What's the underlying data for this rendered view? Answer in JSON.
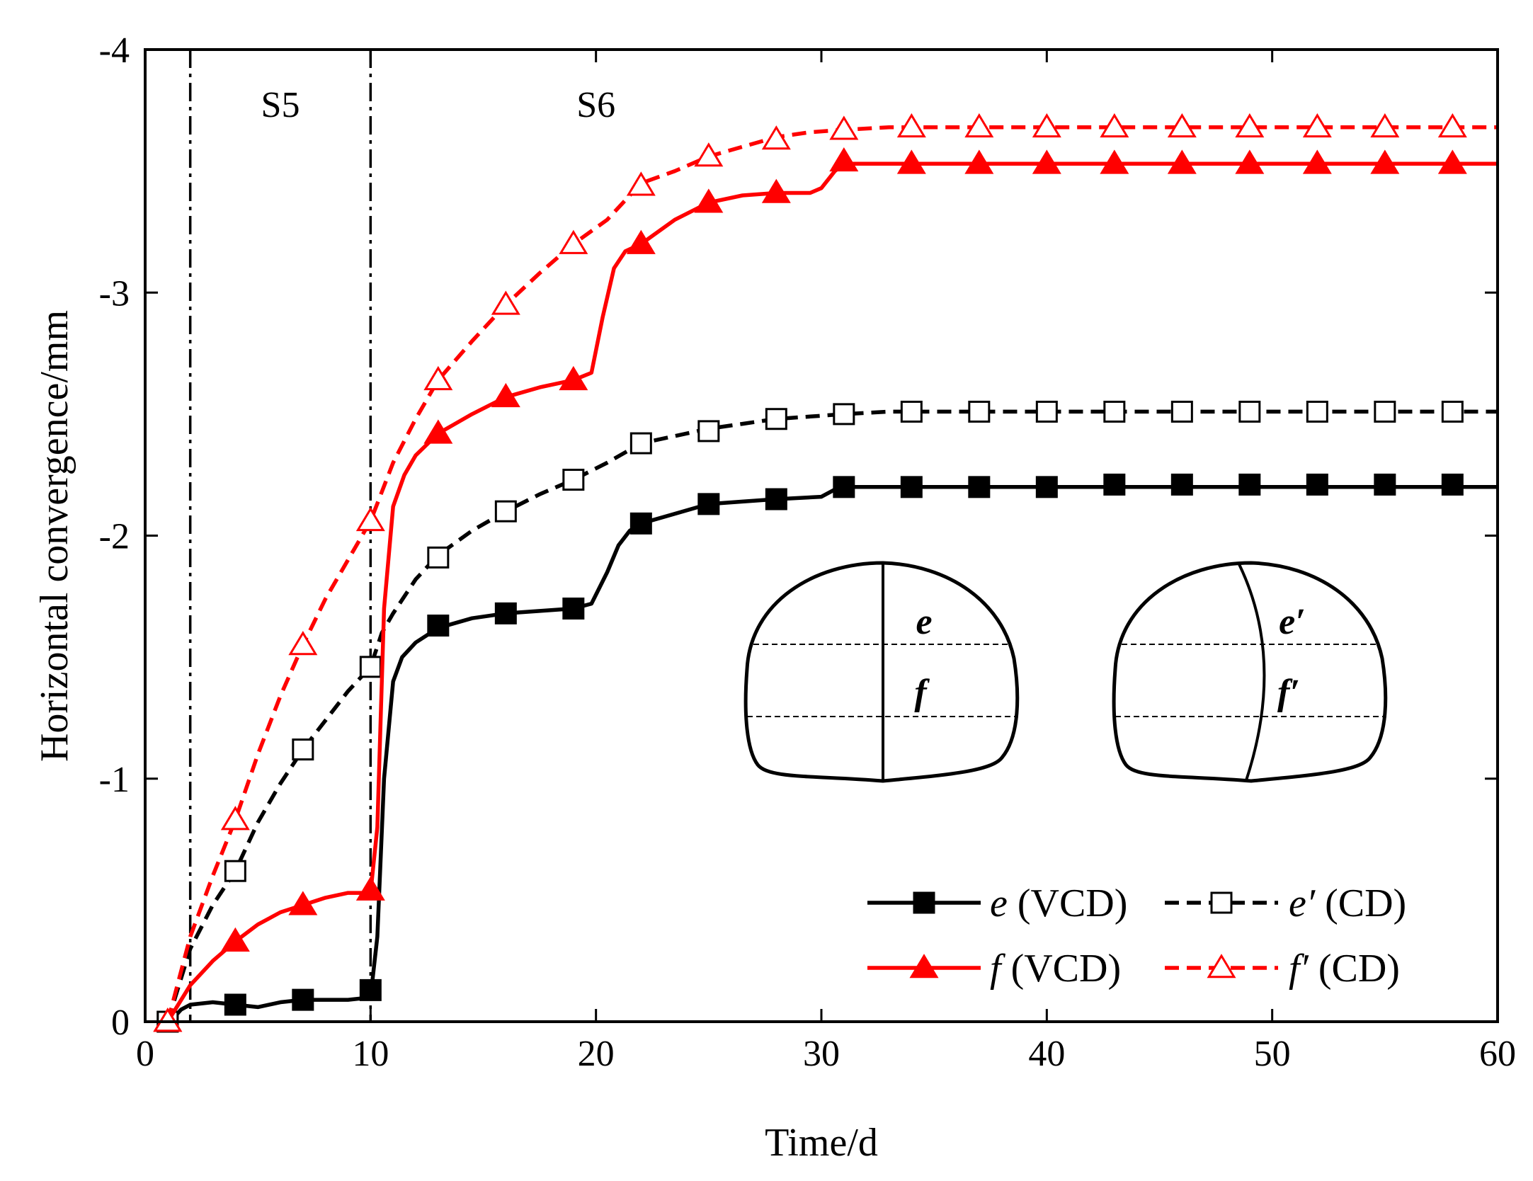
{
  "chart_data": {
    "type": "line",
    "xlabel": "Time/d",
    "ylabel": "Horizontal convergence/mm",
    "xlim": [
      0,
      60
    ],
    "ylim": [
      0,
      -4
    ],
    "y_axis_inverted": true,
    "grid": false,
    "x_ticks": [
      "0",
      "10",
      "20",
      "30",
      "40",
      "50",
      "60"
    ],
    "y_ticks": [
      "0",
      "-1",
      "-2",
      "-3",
      "-4"
    ],
    "stage_lines_x": [
      2,
      10
    ],
    "stage_labels": [
      {
        "text": "S5",
        "x": 6
      },
      {
        "text": "S6",
        "x": 20
      }
    ],
    "legend_position": "bottom-right",
    "series": [
      {
        "name": "e",
        "suffix": " (VCD)",
        "color": "#000000",
        "line": "solid",
        "marker": "square-filled",
        "curve": [
          [
            1,
            0
          ],
          [
            1.3,
            -0.02
          ],
          [
            1.6,
            -0.05
          ],
          [
            2,
            -0.07
          ],
          [
            3,
            -0.08
          ],
          [
            4,
            -0.07
          ],
          [
            5,
            -0.06
          ],
          [
            6,
            -0.08
          ],
          [
            7,
            -0.09
          ],
          [
            8,
            -0.09
          ],
          [
            9,
            -0.09
          ],
          [
            10,
            -0.1
          ],
          [
            10.3,
            -0.35
          ],
          [
            10.6,
            -1.0
          ],
          [
            11,
            -1.4
          ],
          [
            11.4,
            -1.5
          ],
          [
            12,
            -1.56
          ],
          [
            13,
            -1.62
          ],
          [
            14.5,
            -1.66
          ],
          [
            16,
            -1.68
          ],
          [
            17.5,
            -1.69
          ],
          [
            19,
            -1.7
          ],
          [
            19.8,
            -1.72
          ],
          [
            20.5,
            -1.85
          ],
          [
            21,
            -1.96
          ],
          [
            21.5,
            -2.02
          ],
          [
            22,
            -2.05
          ],
          [
            23.5,
            -2.09
          ],
          [
            25,
            -2.13
          ],
          [
            26.5,
            -2.14
          ],
          [
            28,
            -2.15
          ],
          [
            30,
            -2.16
          ],
          [
            30.6,
            -2.19
          ],
          [
            31,
            -2.2
          ],
          [
            33,
            -2.2
          ],
          [
            60,
            -2.2
          ]
        ],
        "markers": [
          [
            1,
            0
          ],
          [
            4,
            -0.07
          ],
          [
            7,
            -0.09
          ],
          [
            10,
            -0.13
          ],
          [
            13,
            -1.63
          ],
          [
            16,
            -1.68
          ],
          [
            19,
            -1.7
          ],
          [
            22,
            -2.05
          ],
          [
            25,
            -2.13
          ],
          [
            28,
            -2.15
          ],
          [
            31,
            -2.2
          ],
          [
            34,
            -2.2
          ],
          [
            37,
            -2.2
          ],
          [
            40,
            -2.2
          ],
          [
            43,
            -2.21
          ],
          [
            46,
            -2.21
          ],
          [
            49,
            -2.21
          ],
          [
            52,
            -2.21
          ],
          [
            55,
            -2.21
          ],
          [
            58,
            -2.21
          ]
        ]
      },
      {
        "name": "e′",
        "suffix": " (CD)",
        "color": "#000000",
        "line": "dashed",
        "marker": "square-open",
        "curve": [
          [
            1,
            0
          ],
          [
            2,
            -0.3
          ],
          [
            3,
            -0.48
          ],
          [
            4,
            -0.62
          ],
          [
            5,
            -0.82
          ],
          [
            6,
            -0.98
          ],
          [
            7,
            -1.12
          ],
          [
            8,
            -1.24
          ],
          [
            9,
            -1.36
          ],
          [
            10,
            -1.46
          ],
          [
            10.5,
            -1.6
          ],
          [
            11,
            -1.68
          ],
          [
            12,
            -1.82
          ],
          [
            13,
            -1.92
          ],
          [
            14.5,
            -2.02
          ],
          [
            16,
            -2.1
          ],
          [
            17.5,
            -2.17
          ],
          [
            19,
            -2.23
          ],
          [
            20.5,
            -2.3
          ],
          [
            22,
            -2.38
          ],
          [
            23.5,
            -2.41
          ],
          [
            25,
            -2.44
          ],
          [
            26.5,
            -2.46
          ],
          [
            28,
            -2.48
          ],
          [
            29.5,
            -2.49
          ],
          [
            31,
            -2.5
          ],
          [
            33,
            -2.51
          ],
          [
            60,
            -2.51
          ]
        ],
        "markers": [
          [
            1,
            0
          ],
          [
            4,
            -0.62
          ],
          [
            7,
            -1.12
          ],
          [
            10,
            -1.46
          ],
          [
            13,
            -1.91
          ],
          [
            16,
            -2.1
          ],
          [
            19,
            -2.23
          ],
          [
            22,
            -2.38
          ],
          [
            25,
            -2.43
          ],
          [
            28,
            -2.48
          ],
          [
            31,
            -2.5
          ],
          [
            34,
            -2.51
          ],
          [
            37,
            -2.51
          ],
          [
            40,
            -2.51
          ],
          [
            43,
            -2.51
          ],
          [
            46,
            -2.51
          ],
          [
            49,
            -2.51
          ],
          [
            52,
            -2.51
          ],
          [
            55,
            -2.51
          ],
          [
            58,
            -2.51
          ]
        ]
      },
      {
        "name": "f",
        "suffix": " (VCD)",
        "color": "#ff0000",
        "line": "solid",
        "marker": "triangle-filled",
        "curve": [
          [
            1,
            0
          ],
          [
            2,
            -0.15
          ],
          [
            3,
            -0.25
          ],
          [
            4,
            -0.33
          ],
          [
            5,
            -0.4
          ],
          [
            6,
            -0.45
          ],
          [
            7,
            -0.48
          ],
          [
            8,
            -0.51
          ],
          [
            9,
            -0.53
          ],
          [
            10,
            -0.53
          ],
          [
            10.3,
            -0.8
          ],
          [
            10.6,
            -1.7
          ],
          [
            11,
            -2.12
          ],
          [
            11.5,
            -2.25
          ],
          [
            12,
            -2.33
          ],
          [
            13,
            -2.42
          ],
          [
            14.5,
            -2.5
          ],
          [
            16,
            -2.57
          ],
          [
            17.5,
            -2.61
          ],
          [
            19,
            -2.64
          ],
          [
            19.8,
            -2.67
          ],
          [
            20.3,
            -2.9
          ],
          [
            20.8,
            -3.1
          ],
          [
            21.3,
            -3.17
          ],
          [
            22,
            -3.2
          ],
          [
            23.5,
            -3.3
          ],
          [
            25,
            -3.37
          ],
          [
            26.5,
            -3.4
          ],
          [
            28,
            -3.41
          ],
          [
            29.5,
            -3.41
          ],
          [
            30,
            -3.43
          ],
          [
            30.6,
            -3.5
          ],
          [
            31,
            -3.53
          ],
          [
            33,
            -3.53
          ],
          [
            60,
            -3.53
          ]
        ],
        "markers": [
          [
            1,
            0
          ],
          [
            4,
            -0.33
          ],
          [
            7,
            -0.48
          ],
          [
            10,
            -0.54
          ],
          [
            13,
            -2.42
          ],
          [
            16,
            -2.57
          ],
          [
            19,
            -2.64
          ],
          [
            22,
            -3.2
          ],
          [
            25,
            -3.37
          ],
          [
            28,
            -3.41
          ],
          [
            31,
            -3.54
          ],
          [
            34,
            -3.53
          ],
          [
            37,
            -3.53
          ],
          [
            40,
            -3.53
          ],
          [
            43,
            -3.53
          ],
          [
            46,
            -3.53
          ],
          [
            49,
            -3.53
          ],
          [
            52,
            -3.53
          ],
          [
            55,
            -3.53
          ],
          [
            58,
            -3.53
          ]
        ]
      },
      {
        "name": "f′",
        "suffix": " (CD)",
        "color": "#ff0000",
        "line": "dashed",
        "marker": "triangle-open",
        "curve": [
          [
            1,
            0
          ],
          [
            2,
            -0.35
          ],
          [
            3,
            -0.6
          ],
          [
            4,
            -0.83
          ],
          [
            5,
            -1.1
          ],
          [
            6,
            -1.34
          ],
          [
            7,
            -1.55
          ],
          [
            8,
            -1.74
          ],
          [
            9,
            -1.9
          ],
          [
            10,
            -2.06
          ],
          [
            11,
            -2.3
          ],
          [
            12,
            -2.48
          ],
          [
            13,
            -2.64
          ],
          [
            14.5,
            -2.8
          ],
          [
            16,
            -2.95
          ],
          [
            17.5,
            -3.08
          ],
          [
            19,
            -3.2
          ],
          [
            20.5,
            -3.3
          ],
          [
            22,
            -3.45
          ],
          [
            23.5,
            -3.5
          ],
          [
            25,
            -3.56
          ],
          [
            26.5,
            -3.6
          ],
          [
            28,
            -3.64
          ],
          [
            29.5,
            -3.66
          ],
          [
            31,
            -3.67
          ],
          [
            33,
            -3.68
          ],
          [
            60,
            -3.68
          ]
        ],
        "markers": [
          [
            1,
            0
          ],
          [
            4,
            -0.83
          ],
          [
            7,
            -1.55
          ],
          [
            10,
            -2.06
          ],
          [
            13,
            -2.64
          ],
          [
            16,
            -2.95
          ],
          [
            19,
            -3.2
          ],
          [
            22,
            -3.44
          ],
          [
            25,
            -3.56
          ],
          [
            28,
            -3.63
          ],
          [
            31,
            -3.67
          ],
          [
            34,
            -3.68
          ],
          [
            37,
            -3.68
          ],
          [
            40,
            -3.68
          ],
          [
            43,
            -3.68
          ],
          [
            46,
            -3.68
          ],
          [
            49,
            -3.68
          ],
          [
            52,
            -3.68
          ],
          [
            55,
            -3.68
          ],
          [
            58,
            -3.68
          ]
        ]
      }
    ],
    "inset": {
      "left_labels": [
        "e",
        "f"
      ],
      "right_labels": [
        "e′",
        "f′"
      ]
    }
  }
}
